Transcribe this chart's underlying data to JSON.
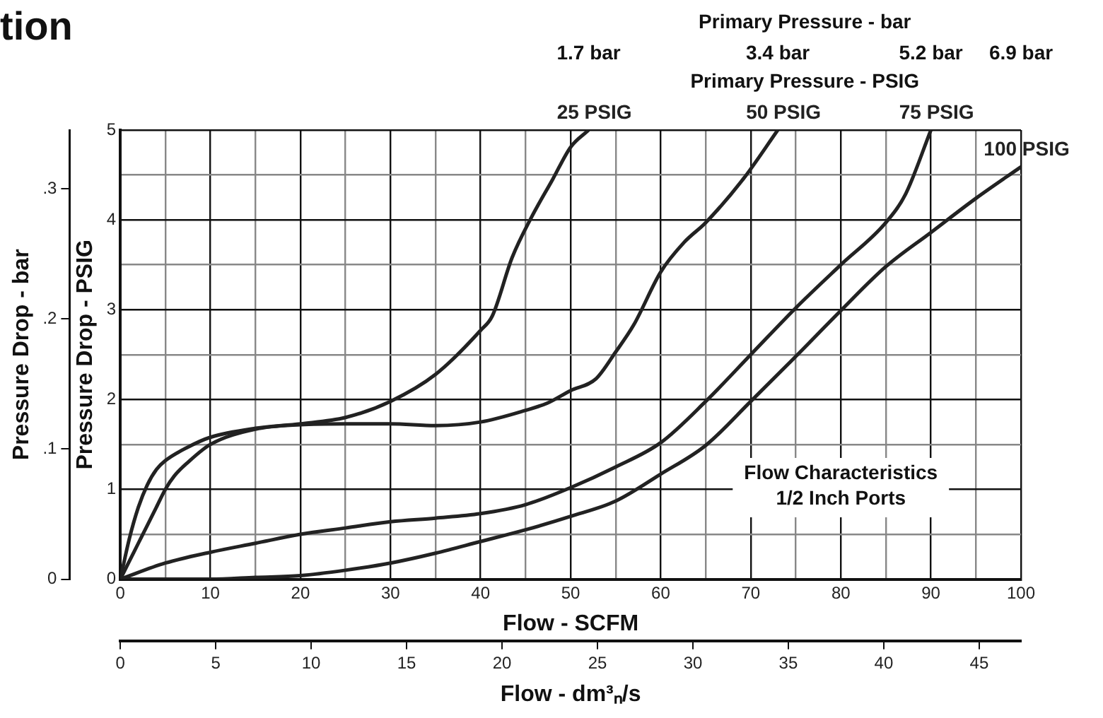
{
  "chart_data": {
    "type": "line",
    "title": "tion",
    "xlabel": "Flow - SCFM",
    "ylabel": "Pressure Drop - PSIG",
    "y2label": "Pressure Drop - bar",
    "x2label": "Flow - dm³ₙ/s",
    "annotations": [
      "Primary Pressure - bar",
      "1.7 bar",
      "3.4 bar",
      "5.2 bar",
      "6.9 bar",
      "Primary Pressure - PSIG",
      "Flow Characteristics\n1/2 Inch Ports"
    ],
    "marker": "none",
    "line_style": "solid",
    "grid": true,
    "xlim": [
      0,
      100
    ],
    "xticks": [
      0,
      {
        "value": 5,
        "label": null
      },
      10,
      {
        "value": 15,
        "label": null
      },
      20,
      {
        "value": 25,
        "label": null
      },
      30,
      {
        "value": 35,
        "label": null
      },
      40,
      {
        "value": 45,
        "label": null
      },
      50,
      {
        "value": 55,
        "label": null
      },
      60,
      {
        "value": 65,
        "label": null
      },
      70,
      {
        "value": 75,
        "label": null
      },
      80,
      {
        "value": 85,
        "label": null
      },
      90,
      {
        "value": 95,
        "label": null
      },
      100
    ],
    "ylim": [
      0,
      5
    ],
    "yticks": [
      0,
      {
        "value": 0.5,
        "label": null
      },
      1,
      {
        "value": 1.5,
        "label": null
      },
      2,
      {
        "value": 2.5,
        "label": null
      },
      3,
      {
        "value": 3.5,
        "label": null
      },
      4,
      {
        "value": 4.5,
        "label": null
      },
      5
    ],
    "y2lim": [
      0,
      0.345
    ],
    "y2ticks": [
      0,
      {
        "value": 0.1,
        "label": ".1"
      },
      {
        "value": 0.2,
        "label": ".2"
      },
      {
        "value": 0.3,
        "label": ".3"
      }
    ],
    "x2lim": [
      0,
      47.19
    ],
    "x2ticks": [
      0,
      5,
      10,
      15,
      20,
      25,
      30,
      35,
      40,
      45
    ],
    "series": [
      {
        "name": "25 PSIG",
        "color": "#222222",
        "x": [
          0,
          1,
          2,
          3,
          4,
          5,
          7.5,
          10,
          15,
          20,
          25,
          30,
          35,
          40,
          41.3,
          43.5,
          45.6,
          48,
          50,
          52
        ],
        "values": [
          0,
          0.45,
          0.8,
          1.05,
          1.22,
          1.32,
          1.47,
          1.58,
          1.68,
          1.73,
          1.8,
          1.98,
          2.28,
          2.77,
          2.93,
          3.58,
          4.02,
          4.45,
          4.81,
          5
        ]
      },
      {
        "name": "50 PSIG",
        "color": "#222222",
        "x": [
          0,
          1,
          2,
          3,
          4,
          5,
          6,
          7.5,
          10,
          15,
          20,
          25,
          30,
          35,
          40,
          45,
          47.4,
          50,
          52.8,
          55,
          57,
          60,
          62.6,
          65,
          69.2,
          73
        ],
        "values": [
          0,
          0.2,
          0.4,
          0.6,
          0.8,
          1.0,
          1.15,
          1.3,
          1.5,
          1.67,
          1.72,
          1.73,
          1.73,
          1.71,
          1.75,
          1.88,
          1.96,
          2.1,
          2.23,
          2.53,
          2.83,
          3.42,
          3.75,
          3.97,
          4.46,
          5
        ]
      },
      {
        "name": "75 PSIG",
        "color": "#222222",
        "x": [
          0,
          5,
          10,
          15,
          20,
          25,
          30,
          35,
          40,
          45,
          50,
          55,
          60,
          65,
          70,
          75,
          80,
          85,
          87.2,
          90
        ],
        "values": [
          0,
          0.18,
          0.3,
          0.4,
          0.5,
          0.57,
          0.64,
          0.68,
          0.73,
          0.83,
          1.02,
          1.25,
          1.52,
          1.98,
          2.5,
          3.02,
          3.5,
          3.97,
          4.29,
          5
        ]
      },
      {
        "name": "100 PSIG",
        "color": "#222222",
        "x": [
          0,
          5,
          10,
          15,
          20,
          25,
          30,
          35,
          40,
          45,
          50,
          55,
          60,
          65,
          70,
          75,
          80,
          85,
          90,
          95,
          100
        ],
        "values": [
          0,
          0,
          0,
          0.02,
          0.04,
          0.1,
          0.18,
          0.29,
          0.42,
          0.55,
          0.7,
          0.87,
          1.17,
          1.49,
          1.98,
          2.48,
          2.99,
          3.48,
          3.86,
          4.24,
          4.59
        ]
      }
    ]
  }
}
